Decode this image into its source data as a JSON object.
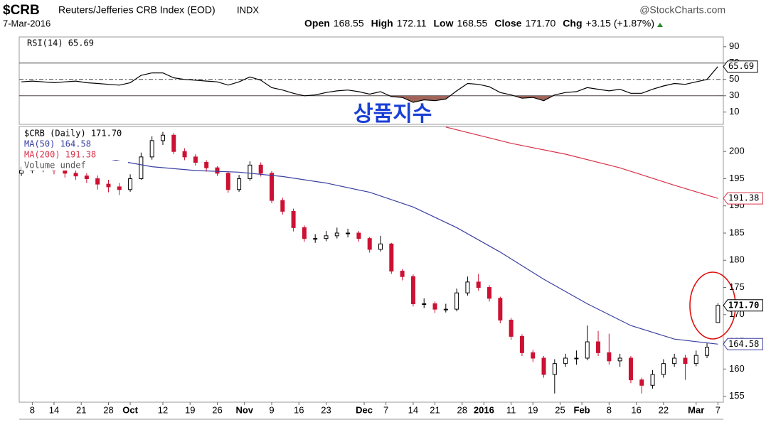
{
  "header": {
    "symbol": "$CRB",
    "name": "Reuters/Jefferies CRB Index (EOD)",
    "exchange": "INDX",
    "source": "@StockCharts.com",
    "date": "7-Mar-2016",
    "quote": [
      {
        "label": "Open",
        "value": "168.55"
      },
      {
        "label": "High",
        "value": "172.11"
      },
      {
        "label": "Low",
        "value": "168.55"
      },
      {
        "label": "Close",
        "value": "171.70"
      },
      {
        "label": "Chg",
        "value": "+3.15 (+1.87%)"
      }
    ]
  },
  "chart_data": [
    {
      "type": "line",
      "legend": "RSI(14) 65.69",
      "annotation": "상품지수",
      "x": [
        0,
        2,
        4,
        6,
        8,
        10,
        12,
        14,
        16,
        18,
        20,
        22,
        24,
        26,
        28,
        30,
        32,
        34,
        36,
        38,
        40,
        42,
        44,
        46,
        48,
        50,
        52,
        54,
        56,
        58,
        60,
        62,
        64,
        66,
        68,
        70,
        72,
        74,
        76,
        78,
        80,
        82,
        84,
        86,
        88,
        90,
        92,
        94,
        96,
        98,
        100,
        102,
        104,
        106,
        108,
        110,
        112,
        114,
        116,
        118,
        120,
        122,
        124,
        126,
        128
      ],
      "series": [
        {
          "name": "RSI(14)",
          "color": "#000000",
          "tag": "65.69",
          "values": [
            47,
            48,
            47,
            46,
            47,
            48,
            46,
            45,
            44,
            43,
            46,
            55,
            58,
            58,
            52,
            50,
            49,
            48,
            47,
            43,
            47,
            53,
            49,
            40,
            37,
            33,
            30,
            31,
            34,
            36,
            37,
            35,
            32,
            35,
            29,
            28,
            22,
            25,
            24,
            26,
            36,
            45,
            44,
            41,
            34,
            31,
            27,
            28,
            24,
            31,
            34,
            35,
            40,
            38,
            36,
            38,
            33,
            33,
            38,
            42,
            45,
            44,
            47,
            50,
            65.69
          ]
        }
      ],
      "xlim": [
        -0.4,
        129
      ],
      "ylim": [
        -5,
        102
      ],
      "yticks": [
        10,
        30,
        50,
        70,
        90
      ],
      "levels": [
        70,
        50,
        30
      ],
      "shade_below": 30,
      "shade_color": "#a0645a"
    },
    {
      "type": "candlestick",
      "legend": [
        "$CRB (Daily) 171.70",
        "MA(50) 164.58",
        "MA(200) 191.38",
        "Volume undef"
      ],
      "tag": "171.70",
      "up_color": "#000000",
      "down_color": "#cc1133",
      "x": [
        0,
        2,
        4,
        6,
        8,
        10,
        12,
        14,
        16,
        18,
        20,
        22,
        24,
        26,
        28,
        30,
        32,
        34,
        36,
        38,
        40,
        42,
        44,
        46,
        48,
        50,
        52,
        54,
        56,
        58,
        60,
        62,
        64,
        66,
        68,
        70,
        72,
        74,
        76,
        78,
        80,
        82,
        84,
        86,
        88,
        90,
        92,
        94,
        96,
        98,
        100,
        102,
        104,
        106,
        108,
        110,
        112,
        114,
        116,
        118,
        120,
        122,
        124,
        126,
        128
      ],
      "candles": [
        [
          196,
          197.2,
          195.5,
          196.5
        ],
        [
          196.5,
          197.6,
          196,
          197
        ],
        [
          197,
          197.8,
          196.2,
          197
        ],
        [
          197,
          197.5,
          195.8,
          196.5
        ],
        [
          196.5,
          197,
          195.2,
          196
        ],
        [
          196,
          196.6,
          194.8,
          195.5
        ],
        [
          195.5,
          196,
          194.2,
          195
        ],
        [
          195,
          195.6,
          193,
          194
        ],
        [
          194,
          194.8,
          192.5,
          193.5
        ],
        [
          193.5,
          194.2,
          192,
          193
        ],
        [
          193,
          195.8,
          192.6,
          195
        ],
        [
          195,
          199.8,
          194.8,
          199
        ],
        [
          199,
          202.8,
          198.5,
          202
        ],
        [
          202,
          203.6,
          201.2,
          203
        ],
        [
          203,
          203.4,
          199.5,
          200
        ],
        [
          200,
          200.6,
          198.4,
          199
        ],
        [
          199,
          199.5,
          197.4,
          198
        ],
        [
          198,
          198.4,
          196.3,
          197
        ],
        [
          197,
          197.3,
          195.5,
          196
        ],
        [
          196,
          196.3,
          192.4,
          193
        ],
        [
          193,
          195.7,
          192.6,
          195
        ],
        [
          195,
          198.2,
          194.6,
          197.5
        ],
        [
          197.5,
          198,
          195.4,
          196
        ],
        [
          196,
          196.4,
          190.5,
          191
        ],
        [
          191,
          191.5,
          188.4,
          189
        ],
        [
          189,
          189.5,
          185.3,
          186
        ],
        [
          186,
          186.4,
          183.4,
          184
        ],
        [
          184,
          184.8,
          183.2,
          184
        ],
        [
          184,
          185.4,
          183.5,
          184.5
        ],
        [
          184.5,
          186,
          184,
          185
        ],
        [
          185,
          185.8,
          184.2,
          185
        ],
        [
          185,
          185.4,
          183.4,
          184
        ],
        [
          184,
          184.3,
          181.4,
          182
        ],
        [
          182,
          184.5,
          181.6,
          183
        ],
        [
          183,
          183.2,
          177.5,
          178
        ],
        [
          178,
          178.4,
          176.3,
          177
        ],
        [
          177,
          177.4,
          171.5,
          172
        ],
        [
          172,
          173,
          171.2,
          172
        ],
        [
          172,
          172.4,
          170.3,
          171
        ],
        [
          171,
          172,
          170.4,
          171
        ],
        [
          171,
          174.8,
          170.6,
          174
        ],
        [
          174,
          177,
          173.5,
          176
        ],
        [
          176,
          177.5,
          174.4,
          175
        ],
        [
          175,
          175.4,
          172.4,
          173
        ],
        [
          173,
          173.3,
          168.4,
          169
        ],
        [
          169,
          169.4,
          165.4,
          166
        ],
        [
          166,
          166.4,
          162.4,
          163
        ],
        [
          163,
          163.5,
          161.3,
          162
        ],
        [
          162,
          162.4,
          158.4,
          159
        ],
        [
          159,
          161.8,
          155.5,
          161
        ],
        [
          161,
          162.8,
          160.4,
          162
        ],
        [
          162,
          163.4,
          160.8,
          162
        ],
        [
          162,
          168,
          161.6,
          165
        ],
        [
          165,
          167,
          162.4,
          163
        ],
        [
          163,
          166.5,
          160.8,
          161.5
        ],
        [
          161.5,
          162.8,
          160.4,
          162
        ],
        [
          162,
          162.4,
          157.4,
          158
        ],
        [
          158,
          158.4,
          155.5,
          157
        ],
        [
          157,
          159.8,
          156.4,
          159
        ],
        [
          159,
          161.8,
          158.4,
          161
        ],
        [
          161,
          162.8,
          160.4,
          162
        ],
        [
          162,
          162.6,
          158,
          161
        ],
        [
          161,
          163.4,
          160.5,
          162.5
        ],
        [
          162.5,
          164.8,
          162,
          164
        ],
        [
          168.55,
          172.11,
          168.55,
          171.7
        ]
      ],
      "lines": [
        {
          "name": "MA(50)",
          "color": "#3a3fa0",
          "tag": "164.58",
          "x": [
            14,
            24,
            32,
            40,
            48,
            56,
            64,
            72,
            80,
            88,
            96,
            104,
            112,
            120,
            128
          ],
          "values": [
            199,
            197.2,
            196.5,
            196.2,
            195.4,
            194.2,
            192.5,
            189.8,
            186,
            181.5,
            176.5,
            172,
            168,
            165.5,
            164.58
          ]
        },
        {
          "name": "MA(200)",
          "color": "#d9334a",
          "tag": "191.38",
          "x": [
            78,
            90,
            100,
            110,
            120,
            128
          ],
          "values": [
            204.5,
            201.5,
            199.5,
            197,
            193.8,
            191.38
          ]
        }
      ],
      "xlim": [
        -0.4,
        129
      ],
      "ylim": [
        153.9,
        204.6
      ],
      "yticks": [
        155,
        160,
        165,
        170,
        175,
        180,
        185,
        190,
        195,
        200
      ],
      "xticks": [
        {
          "value": 2,
          "label": "8"
        },
        {
          "value": 6,
          "label": "14"
        },
        {
          "value": 11,
          "label": "21"
        },
        {
          "value": 16,
          "label": "28"
        },
        {
          "value": 20,
          "label": "Oct"
        },
        {
          "value": 26,
          "label": "12"
        },
        {
          "value": 31,
          "label": "19"
        },
        {
          "value": 36,
          "label": "26"
        },
        {
          "value": 41,
          "label": "Nov"
        },
        {
          "value": 46,
          "label": "9"
        },
        {
          "value": 51,
          "label": "16"
        },
        {
          "value": 56,
          "label": "23"
        },
        {
          "value": 63,
          "label": "Dec"
        },
        {
          "value": 67,
          "label": "7"
        },
        {
          "value": 72,
          "label": "14"
        },
        {
          "value": 76,
          "label": "21"
        },
        {
          "value": 81,
          "label": "28"
        },
        {
          "value": 85,
          "label": "2016"
        },
        {
          "value": 90,
          "label": "11"
        },
        {
          "value": 94,
          "label": "19"
        },
        {
          "value": 99,
          "label": "25"
        },
        {
          "value": 103,
          "label": "Feb"
        },
        {
          "value": 108,
          "label": "8"
        },
        {
          "value": 113,
          "label": "16"
        },
        {
          "value": 118,
          "label": "22"
        },
        {
          "value": 124,
          "label": "Mar"
        },
        {
          "value": 128,
          "label": "7"
        }
      ],
      "bold_ticks": [
        "Oct",
        "Nov",
        "Dec",
        "2016",
        "Feb",
        "Mar"
      ]
    }
  ]
}
